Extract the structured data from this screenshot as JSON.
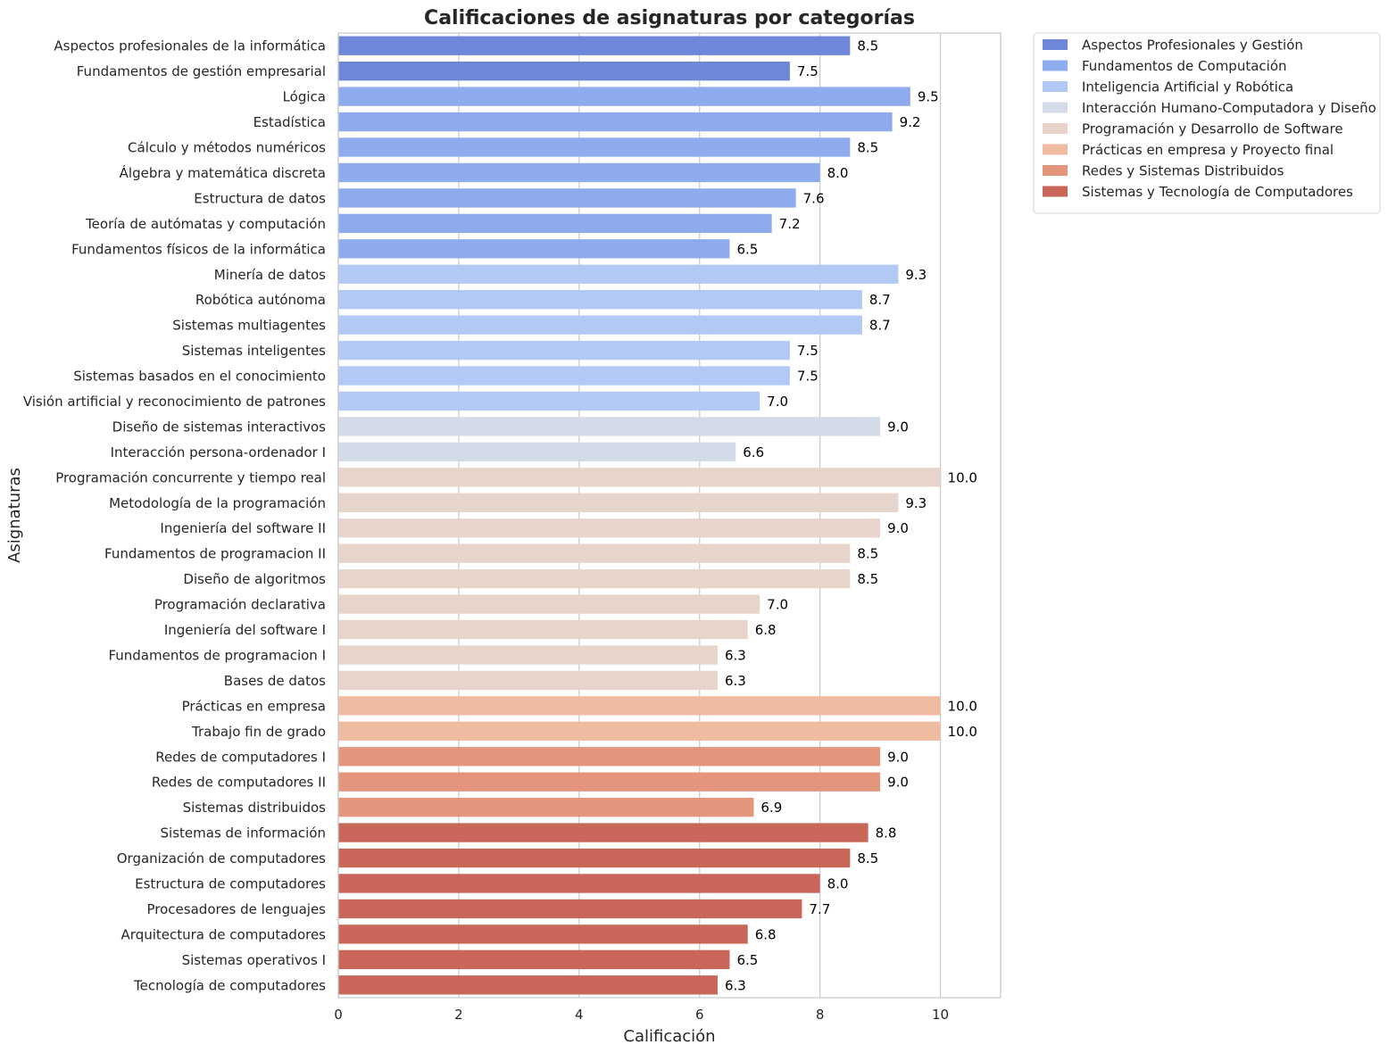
{
  "chart_data": {
    "type": "bar",
    "orientation": "horizontal",
    "title": "Calificaciones de asignaturas por categorías",
    "xlabel": "Calificación",
    "ylabel": "Asignaturas",
    "xlim": [
      0,
      11
    ],
    "xticks": [
      0,
      2,
      4,
      6,
      8,
      10
    ],
    "grid": true,
    "legend_position": "outside-top-right",
    "legend": [
      {
        "name": "Aspectos Profesionales y Gestión",
        "color": "#6f87d8"
      },
      {
        "name": "Fundamentos de Computación",
        "color": "#8eabee"
      },
      {
        "name": "Inteligencia Artificial y Robótica",
        "color": "#b3c9f5"
      },
      {
        "name": "Interacción Humano-Computadora y Diseño",
        "color": "#d3dbe9"
      },
      {
        "name": "Programación y Desarrollo de Software",
        "color": "#e7d5cc"
      },
      {
        "name": "Prácticas en empresa y Proyecto final",
        "color": "#efbba1"
      },
      {
        "name": "Redes y Sistemas Distribuidos",
        "color": "#e4967d"
      },
      {
        "name": "Sistemas y Tecnología de Computadores",
        "color": "#c8665a"
      }
    ],
    "bars": [
      {
        "label": "Aspectos profesionales de la informática",
        "value": 8.5,
        "value_label": "8.5",
        "category": 0
      },
      {
        "label": "Fundamentos de gestión empresarial",
        "value": 7.5,
        "value_label": "7.5",
        "category": 0
      },
      {
        "label": "Lógica",
        "value": 9.5,
        "value_label": "9.5",
        "category": 1
      },
      {
        "label": "Estadística",
        "value": 9.2,
        "value_label": "9.2",
        "category": 1
      },
      {
        "label": "Cálculo y métodos numéricos",
        "value": 8.5,
        "value_label": "8.5",
        "category": 1
      },
      {
        "label": "Álgebra y matemática discreta",
        "value": 8.0,
        "value_label": "8.0",
        "category": 1
      },
      {
        "label": "Estructura de datos",
        "value": 7.6,
        "value_label": "7.6",
        "category": 1
      },
      {
        "label": "Teoría de autómatas y computación",
        "value": 7.2,
        "value_label": "7.2",
        "category": 1
      },
      {
        "label": "Fundamentos físicos de la informática",
        "value": 6.5,
        "value_label": "6.5",
        "category": 1
      },
      {
        "label": "Minería de datos",
        "value": 9.3,
        "value_label": "9.3",
        "category": 2
      },
      {
        "label": "Robótica autónoma",
        "value": 8.7,
        "value_label": "8.7",
        "category": 2
      },
      {
        "label": "Sistemas multiagentes",
        "value": 8.7,
        "value_label": "8.7",
        "category": 2
      },
      {
        "label": "Sistemas inteligentes",
        "value": 7.5,
        "value_label": "7.5",
        "category": 2
      },
      {
        "label": "Sistemas basados en el conocimiento",
        "value": 7.5,
        "value_label": "7.5",
        "category": 2
      },
      {
        "label": "Visión artificial y reconocimiento de patrones",
        "value": 7.0,
        "value_label": "7.0",
        "category": 2
      },
      {
        "label": "Diseño de sistemas interactivos",
        "value": 9.0,
        "value_label": "9.0",
        "category": 3
      },
      {
        "label": "Interacción persona-ordenador I",
        "value": 6.6,
        "value_label": "6.6",
        "category": 3
      },
      {
        "label": "Programación concurrente y tiempo real",
        "value": 10.0,
        "value_label": "10.0",
        "category": 4
      },
      {
        "label": "Metodología de la programación",
        "value": 9.3,
        "value_label": "9.3",
        "category": 4
      },
      {
        "label": "Ingeniería del software II",
        "value": 9.0,
        "value_label": "9.0",
        "category": 4
      },
      {
        "label": "Fundamentos de programacion II",
        "value": 8.5,
        "value_label": "8.5",
        "category": 4
      },
      {
        "label": "Diseño de algoritmos",
        "value": 8.5,
        "value_label": "8.5",
        "category": 4
      },
      {
        "label": "Programación declarativa",
        "value": 7.0,
        "value_label": "7.0",
        "category": 4
      },
      {
        "label": "Ingeniería del software I",
        "value": 6.8,
        "value_label": "6.8",
        "category": 4
      },
      {
        "label": "Fundamentos de programacion I",
        "value": 6.3,
        "value_label": "6.3",
        "category": 4
      },
      {
        "label": "Bases de datos",
        "value": 6.3,
        "value_label": "6.3",
        "category": 4
      },
      {
        "label": "Prácticas en empresa",
        "value": 10.0,
        "value_label": "10.0",
        "category": 5
      },
      {
        "label": "Trabajo fin de grado",
        "value": 10.0,
        "value_label": "10.0",
        "category": 5
      },
      {
        "label": "Redes de computadores I",
        "value": 9.0,
        "value_label": "9.0",
        "category": 6
      },
      {
        "label": "Redes de computadores II",
        "value": 9.0,
        "value_label": "9.0",
        "category": 6
      },
      {
        "label": "Sistemas distribuidos",
        "value": 6.9,
        "value_label": "6.9",
        "category": 6
      },
      {
        "label": "Sistemas de información",
        "value": 8.8,
        "value_label": "8.8",
        "category": 7
      },
      {
        "label": "Organización de computadores",
        "value": 8.5,
        "value_label": "8.5",
        "category": 7
      },
      {
        "label": "Estructura de computadores",
        "value": 8.0,
        "value_label": "8.0",
        "category": 7
      },
      {
        "label": "Procesadores de lenguajes",
        "value": 7.7,
        "value_label": "7.7",
        "category": 7
      },
      {
        "label": "Arquitectura de computadores",
        "value": 6.8,
        "value_label": "6.8",
        "category": 7
      },
      {
        "label": "Sistemas operativos I",
        "value": 6.5,
        "value_label": "6.5",
        "category": 7
      },
      {
        "label": "Tecnología de computadores",
        "value": 6.3,
        "value_label": "6.3",
        "category": 7
      }
    ]
  }
}
